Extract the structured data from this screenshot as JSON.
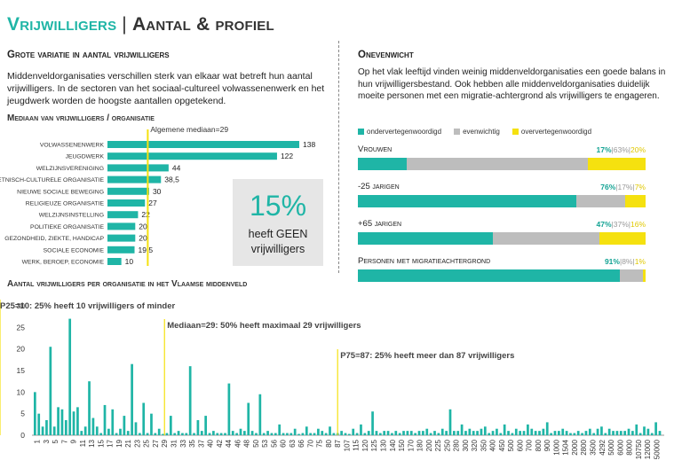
{
  "title": {
    "part1": "Vrijwilligers",
    "separator": "|",
    "part2": "Aantal & profiel"
  },
  "colors": {
    "teal": "#1fb5a6",
    "gray": "#bdbdbd",
    "yellow": "#f5e10f",
    "callout_bg": "#e6e6e6"
  },
  "left": {
    "heading": "Grote variatie in aantal vrijwilligers",
    "text": "Middenveldorganisaties verschillen sterk van elkaar wat betreft hun aantal vrijwilligers. In de sectoren van het sociaal-cultureel volwassenenwerk en het jeugdwerk worden de hoogste aantallen opgetekend."
  },
  "callout": {
    "percent": "15%",
    "line1": "heeft GEEN",
    "line2": "vrijwilligers"
  },
  "right": {
    "heading": "Onevenwicht",
    "text": "Op het vlak leeftijd vinden weinig middenveldorganisaties een goede balans in hun vrijwilligersbestand. Ook hebben alle middenveldorganisaties duidelijk moeite personen met een migratie-achtergrond als vrijwilligers te engageren."
  },
  "chart_data": [
    {
      "type": "bar",
      "orientation": "horizontal",
      "title": "Mediaan van vrijwilligers / organisatie",
      "reference_line": {
        "label": "Algemene mediaan=29",
        "value": 29
      },
      "categories": [
        "Volwassenenwerk",
        "Jeugdwerk",
        "Welzijnsvereniging",
        "Etnisch-culturele organisatie",
        "Nieuwe sociale beweging",
        "Religieuze organisatie",
        "Welzijnsinstelling",
        "Politieke organisatie",
        "Gezondheid, ziekte, handicap",
        "Sociale economie",
        "Werk, beroep, economie"
      ],
      "values": [
        138,
        122,
        44,
        38.5,
        30,
        27,
        22,
        20,
        20,
        19.5,
        10
      ],
      "value_labels": [
        "138",
        "122",
        "44",
        "38,5",
        "30",
        "27",
        "22",
        "20",
        "20",
        "19,5",
        "10"
      ],
      "xlim": [
        0,
        150
      ]
    },
    {
      "type": "bar",
      "orientation": "horizontal-stacked",
      "title": "Onevenwicht",
      "legend": [
        "ondervertegenwoordigd",
        "evenwichtig",
        "oververtegenwoordigd"
      ],
      "legend_position": "top",
      "series_colors": [
        "#1fb5a6",
        "#bdbdbd",
        "#f5e10f"
      ],
      "categories": [
        "Vrouwen",
        "-25 jarigen",
        "+65 jarigen",
        "Personen met migratieachtergrond"
      ],
      "series": [
        {
          "name": "ondervertegenwoordigd",
          "values": [
            17,
            76,
            47,
            91
          ]
        },
        {
          "name": "evenwichtig",
          "values": [
            63,
            17,
            37,
            8
          ]
        },
        {
          "name": "oververtegenwoordigd",
          "values": [
            20,
            7,
            16,
            1
          ]
        }
      ]
    },
    {
      "type": "bar",
      "title": "Aantal vrijwilligers per organisatie in het Vlaamse middenveld",
      "ylim": [
        0,
        30
      ],
      "yticks": [
        "0",
        "5",
        "10",
        "15",
        "20",
        "25",
        "30"
      ],
      "grid": false,
      "x_tick_labels": [
        "1",
        "3",
        "5",
        "7",
        "9",
        "11",
        "13",
        "15",
        "17",
        "19",
        "21",
        "23",
        "25",
        "27",
        "29",
        "31",
        "33",
        "35",
        "37",
        "40",
        "42",
        "44",
        "46",
        "48",
        "50",
        "53",
        "56",
        "60",
        "63",
        "66",
        "70",
        "75",
        "80",
        "87",
        "107",
        "115",
        "120",
        "125",
        "130",
        "140",
        "150",
        "170",
        "180",
        "200",
        "225",
        "250",
        "280",
        "300",
        "320",
        "350",
        "400",
        "450",
        "500",
        "600",
        "700",
        "800",
        "900",
        "1000",
        "1504",
        "2000",
        "2800",
        "3500",
        "4292",
        "5000",
        "6000",
        "8000",
        "10750",
        "12000",
        "50000"
      ],
      "values": [
        10,
        5,
        2,
        3.5,
        20.5,
        2,
        6.5,
        6,
        3.5,
        27,
        5.5,
        6.5,
        1,
        2,
        12.5,
        4,
        2,
        0.5,
        7,
        1.5,
        6,
        0.5,
        1.5,
        4.5,
        1,
        16.5,
        3,
        0.5,
        7.5,
        0.5,
        5,
        0.5,
        1.5,
        0.3,
        0.5,
        4.5,
        0.5,
        1,
        0.5,
        0.5,
        16,
        0.5,
        3.5,
        1,
        4.5,
        0.5,
        1,
        0.5,
        0.5,
        0.5,
        12,
        1,
        0.5,
        1.5,
        1,
        7.5,
        1,
        0.5,
        9.5,
        0.5,
        1,
        0.5,
        0.5,
        2.5,
        0.5,
        0.5,
        0.5,
        1.5,
        0.3,
        0.5,
        2,
        0.5,
        0.5,
        1.5,
        1,
        0.5,
        2,
        0.5,
        0.5,
        1,
        0.5,
        0.3,
        1.5,
        0.5,
        2.5,
        0.5,
        1,
        5.5,
        1,
        0.5,
        1,
        1,
        0.5,
        1,
        0.5,
        1,
        1,
        1,
        0.5,
        1,
        1,
        1.5,
        0.5,
        1,
        0.5,
        1.5,
        1,
        6,
        1,
        1,
        2.5,
        1,
        1.5,
        1,
        1,
        1.5,
        2,
        0.5,
        1,
        1.5,
        0.5,
        2.5,
        1,
        0.5,
        1.5,
        1,
        1,
        2.5,
        1.5,
        1,
        1,
        1.5,
        3,
        0.5,
        1,
        1,
        1.5,
        1,
        0.5,
        0.5,
        1,
        0.5,
        1,
        1.5,
        0.5,
        1.5,
        2,
        0.5,
        1.5,
        1,
        1,
        1,
        1,
        1.5,
        1,
        2.5,
        0.5,
        2,
        1.5,
        0.5,
        3,
        1
      ],
      "annotations": [
        {
          "label": "P25=10: 25% heeft 10 vrijwilligers of minder",
          "x": "10"
        },
        {
          "label": "Mediaan=29: 50% heeft maximaal 29 vrijwilligers",
          "x": "29"
        },
        {
          "label": "P75=87: 25% heeft meer dan 87 vrijwilligers",
          "x": "87"
        }
      ]
    }
  ]
}
